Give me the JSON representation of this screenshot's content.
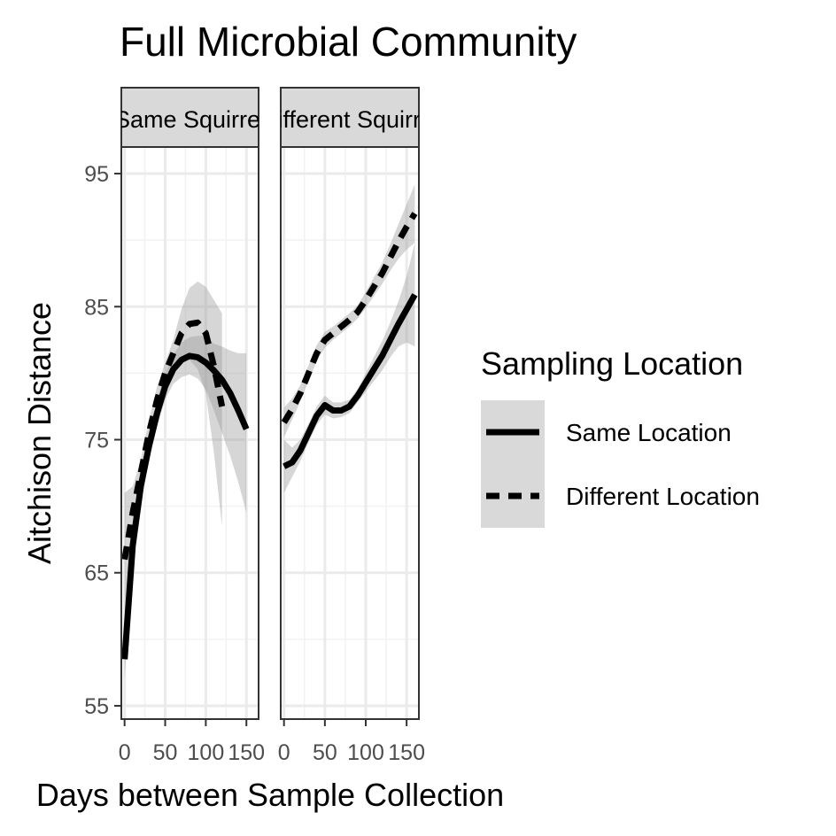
{
  "chart_data": {
    "type": "line",
    "title": "Full Microbial Community",
    "xlabel": "Days between Sample Collection",
    "ylabel": "Aitchison Distance",
    "ylim": [
      54,
      97
    ],
    "yticks": [
      55,
      65,
      75,
      85,
      95
    ],
    "xticks": [
      0,
      50,
      100,
      150
    ],
    "grid": true,
    "legend": {
      "title": "Sampling Location",
      "position": "right",
      "entries": [
        {
          "label": "Same Location",
          "dash": "solid"
        },
        {
          "label": "Different Location",
          "dash": "dashed"
        }
      ]
    },
    "panels": [
      {
        "label": "Same Squirrel",
        "xlim": [
          -4,
          165
        ],
        "series": [
          {
            "name": "Same Location",
            "dash": "solid",
            "x": [
              0,
              10,
              20,
              30,
              40,
              50,
              60,
              70,
              80,
              90,
              100,
              110,
              120,
              130,
              140,
              150
            ],
            "y": [
              58.5,
              67,
              71.5,
              74.5,
              77,
              79,
              80.3,
              81,
              81.3,
              81.2,
              80.8,
              80.2,
              79.5,
              78.5,
              77.2,
              75.8
            ],
            "lower": [
              57,
              65.5,
              70.5,
              73.5,
              76,
              78,
              79.2,
              79.7,
              79.9,
              79.6,
              78.8,
              77.2,
              75.5,
              73.8,
              71.8,
              69.5
            ],
            "upper": [
              60,
              68.5,
              72.5,
              75.5,
              78,
              80,
              81.4,
              82.3,
              82.7,
              82.8,
              82.8,
              82.2,
              82.0,
              81.7,
              81.5,
              81.5
            ]
          },
          {
            "name": "Different Location",
            "dash": "dashed",
            "x": [
              0,
              10,
              20,
              30,
              40,
              50,
              60,
              70,
              80,
              90,
              100,
              110,
              120
            ],
            "y": [
              66,
              69.5,
              72.5,
              75.5,
              78,
              80,
              81.5,
              83,
              83.7,
              83.8,
              83,
              80.5,
              77.5
            ],
            "lower": [
              61,
              67.5,
              71.5,
              74.5,
              77,
              79.2,
              80.5,
              81.2,
              81,
              80.3,
              78.5,
              74,
              68.5
            ],
            "upper": [
              71,
              71.5,
              73.5,
              76.5,
              79,
              80.8,
              82.5,
              84.8,
              86.4,
              86.9,
              86.5,
              85.5,
              84.5
            ]
          }
        ]
      },
      {
        "label": "Different Squirrel",
        "xlim": [
          -4,
          165
        ],
        "series": [
          {
            "name": "Same Location",
            "dash": "solid",
            "x": [
              0,
              10,
              20,
              30,
              40,
              50,
              60,
              70,
              80,
              90,
              100,
              110,
              120,
              130,
              140,
              150,
              160
            ],
            "y": [
              73,
              73.3,
              74.2,
              75.5,
              76.8,
              77.6,
              77.2,
              77.2,
              77.5,
              78.3,
              79.3,
              80.3,
              81.3,
              82.5,
              83.7,
              84.8,
              85.9
            ],
            "lower": [
              71,
              72.2,
              73.4,
              74.8,
              76.1,
              76.9,
              76.6,
              76.7,
              77,
              77.8,
              78.6,
              79.4,
              80.2,
              81.2,
              82.0,
              82.3,
              82.0
            ],
            "upper": [
              75,
              74.4,
              75,
              76.2,
              77.5,
              78.3,
              77.8,
              77.8,
              78,
              78.8,
              80,
              81.2,
              82.4,
              83.8,
              85.4,
              87.3,
              89.8
            ]
          },
          {
            "name": "Different Location",
            "dash": "dashed",
            "x": [
              0,
              10,
              20,
              30,
              40,
              50,
              60,
              70,
              80,
              90,
              100,
              110,
              120,
              130,
              140,
              150,
              160
            ],
            "y": [
              76.3,
              77.3,
              78.5,
              80,
              81.5,
              82.5,
              83,
              83.5,
              84,
              84.6,
              85.5,
              86.5,
              87.5,
              88.7,
              89.9,
              91,
              92
            ],
            "lower": [
              75.2,
              76.5,
              77.9,
              79.4,
              80.9,
              81.9,
              82.5,
              83,
              83.5,
              84.1,
              84.9,
              85.8,
              86.7,
              87.7,
              88.6,
              89.3,
              89.8
            ],
            "upper": [
              77.4,
              78.1,
              79.1,
              80.6,
              82.1,
              83.1,
              83.5,
              84,
              84.5,
              85.1,
              86.1,
              87.2,
              88.3,
              89.7,
              91.2,
              92.7,
              94.2
            ]
          }
        ]
      }
    ]
  }
}
